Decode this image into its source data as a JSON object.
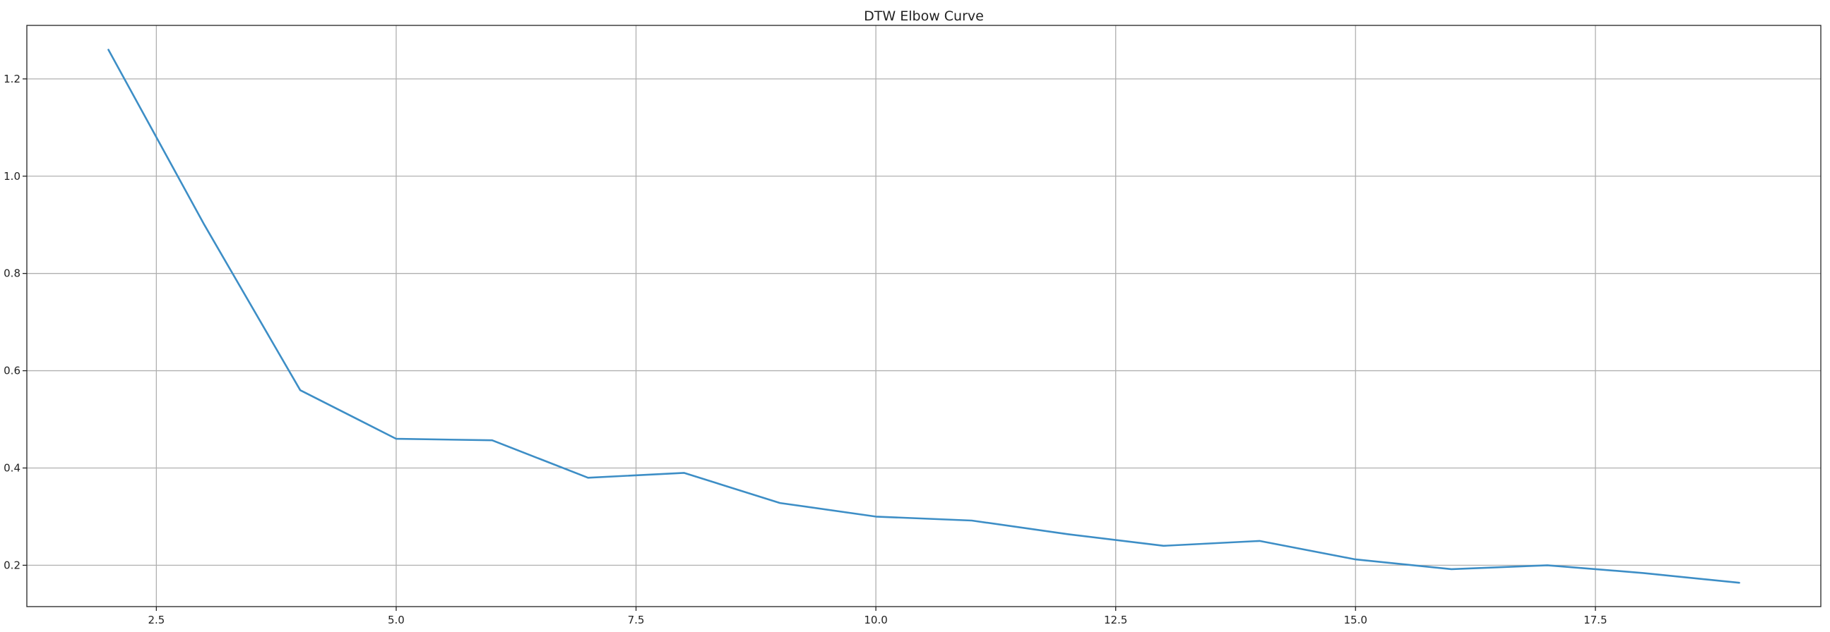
{
  "chart_data": {
    "type": "line",
    "title": "DTW Elbow Curve",
    "xlabel": "",
    "ylabel": "",
    "xlim": [
      1.15,
      19.85
    ],
    "ylim": [
      0.115,
      1.31
    ],
    "xticks": [
      2.5,
      5.0,
      7.5,
      10.0,
      12.5,
      15.0,
      17.5
    ],
    "xtick_labels": [
      "2.5",
      "5.0",
      "7.5",
      "10.0",
      "12.5",
      "15.0",
      "17.5"
    ],
    "yticks": [
      0.2,
      0.4,
      0.6,
      0.8,
      1.0,
      1.2
    ],
    "ytick_labels": [
      "0.2",
      "0.4",
      "0.6",
      "0.8",
      "1.0",
      "1.2"
    ],
    "grid": true,
    "series": [
      {
        "color": "#3d8ec6",
        "x": [
          2,
          3,
          4,
          5,
          6,
          7,
          8,
          9,
          10,
          11,
          12,
          13,
          14,
          15,
          16,
          17,
          18,
          19
        ],
        "y": [
          1.26,
          0.9,
          0.56,
          0.46,
          0.457,
          0.38,
          0.39,
          0.328,
          0.3,
          0.292,
          0.264,
          0.24,
          0.25,
          0.212,
          0.192,
          0.2,
          0.184,
          0.164
        ]
      }
    ]
  }
}
